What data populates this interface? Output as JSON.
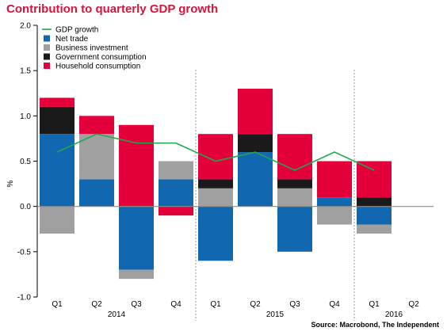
{
  "chart_data": {
    "type": "bar",
    "stacked": true,
    "title": "Contribution to quarterly GDP growth",
    "ylabel": "%",
    "ylim": [
      -1.0,
      2.0
    ],
    "yticks": [
      "2.0",
      "1.5",
      "1.0",
      "0.5",
      "0.0",
      "-0.5",
      "-1.0"
    ],
    "categories": [
      "Q1",
      "Q2",
      "Q3",
      "Q4",
      "Q1",
      "Q2",
      "Q3",
      "Q4",
      "Q1",
      "Q2"
    ],
    "year_labels": [
      "2014",
      "2015",
      "2016"
    ],
    "legend_position": "top-left",
    "grid": false,
    "series": [
      {
        "name": "Net trade",
        "color": "#1168b0",
        "values": [
          0.8,
          0.3,
          -0.7,
          0.3,
          -0.6,
          0.6,
          -0.5,
          0.1,
          -0.2,
          null
        ]
      },
      {
        "name": "Business investment",
        "color": "#a0a0a0",
        "values": [
          -0.3,
          0.5,
          -0.1,
          0.2,
          0.2,
          0.0,
          0.2,
          -0.2,
          -0.1,
          null
        ]
      },
      {
        "name": "Government consumption",
        "color": "#1a1a1a",
        "values": [
          0.3,
          0.0,
          0.0,
          0.0,
          0.1,
          0.2,
          0.1,
          0.0,
          0.1,
          null
        ]
      },
      {
        "name": "Household consumption",
        "color": "#e4003b",
        "values": [
          0.1,
          0.2,
          0.9,
          -0.1,
          0.5,
          0.5,
          0.5,
          0.4,
          0.4,
          null
        ]
      }
    ],
    "line": {
      "name": "GDP growth",
      "color": "#1fa84b",
      "values": [
        0.6,
        0.8,
        0.7,
        0.7,
        0.5,
        0.6,
        0.4,
        0.6,
        0.4,
        null
      ]
    }
  },
  "source": "Source: Macrobond, The Independent"
}
